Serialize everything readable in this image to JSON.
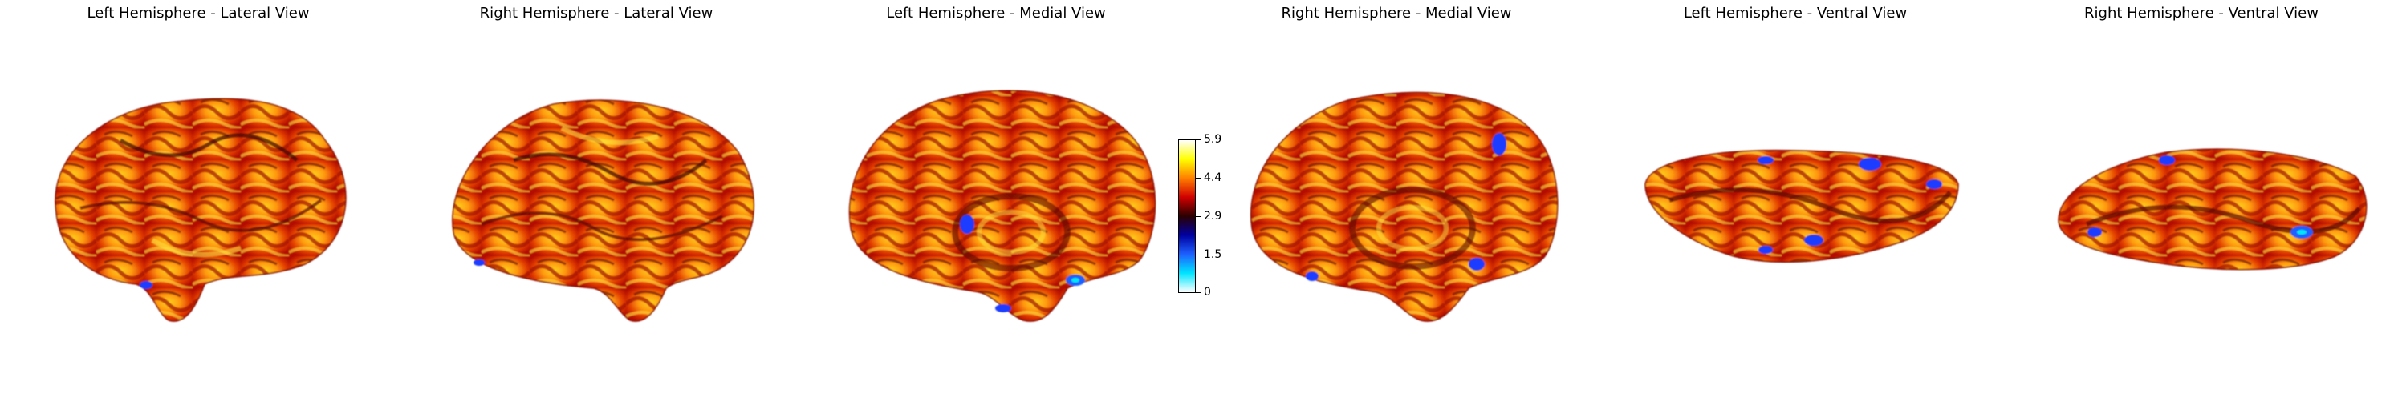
{
  "panels": [
    {
      "title": "Left Hemisphere - Lateral View"
    },
    {
      "title": "Right Hemisphere - Lateral View"
    },
    {
      "title": "Left Hemisphere - Medial View"
    },
    {
      "title": "Right Hemisphere - Medial View"
    },
    {
      "title": "Left Hemisphere - Ventral View"
    },
    {
      "title": "Right Hemisphere - Ventral View"
    }
  ],
  "colorbar": {
    "ticks": [
      "5.9",
      "4.4",
      "2.9",
      "1.5",
      "0"
    ],
    "colors": [
      "#ffffff",
      "#ffff00",
      "#ff7f00",
      "#d10000",
      "#2a0000",
      "#0000a0",
      "#1e60ff",
      "#00e5ff",
      "#ffffff"
    ]
  }
}
